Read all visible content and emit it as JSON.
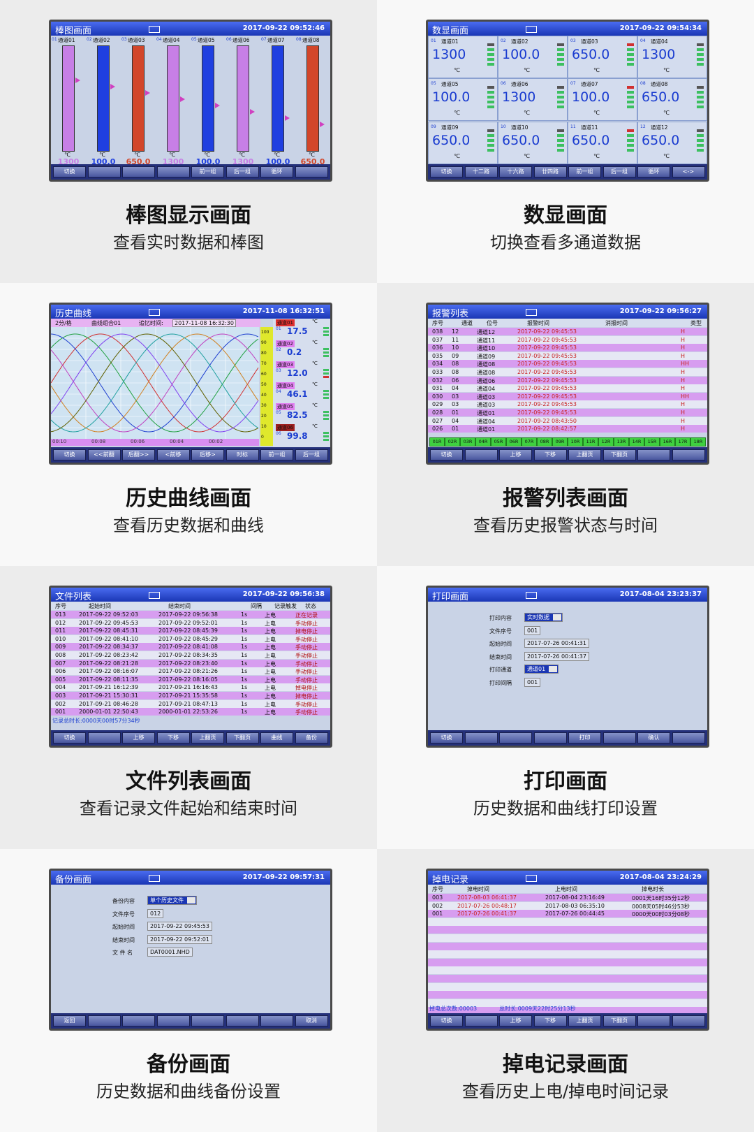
{
  "panels": [
    {
      "screen": {
        "title": "棒图画面",
        "datetime": "2017-09-22 09:52:46",
        "unit": "℃",
        "bars": [
          {
            "id": "01",
            "name": "通道01",
            "value": "1300",
            "color": "#c77fe6"
          },
          {
            "id": "02",
            "name": "通道02",
            "value": "100.0",
            "color": "#1f3fe0"
          },
          {
            "id": "03",
            "name": "通道03",
            "value": "650.0",
            "color": "#d2462a"
          },
          {
            "id": "04",
            "name": "通道04",
            "value": "1300",
            "color": "#c77fe6"
          },
          {
            "id": "05",
            "name": "通道05",
            "value": "100.0",
            "color": "#1f3fe0"
          },
          {
            "id": "06",
            "name": "通道06",
            "value": "1300",
            "color": "#c77fe6"
          },
          {
            "id": "07",
            "name": "通道07",
            "value": "100.0",
            "color": "#1f3fe0"
          },
          {
            "id": "08",
            "name": "通道08",
            "value": "650.0",
            "color": "#d2462a"
          }
        ],
        "buttons": [
          "切换",
          null,
          null,
          null,
          "前一组",
          "后一组",
          "循环",
          null
        ]
      },
      "caption": {
        "title": "棒图显示画面",
        "subtitle": "查看实时数据和棒图"
      }
    },
    {
      "screen": {
        "title": "数显画面",
        "datetime": "2017-09-22 09:54:34",
        "unit": "℃",
        "cells": [
          {
            "id": "01",
            "name": "通道01",
            "value": "1300"
          },
          {
            "id": "02",
            "name": "通道02",
            "value": "100.0"
          },
          {
            "id": "03",
            "name": "通道03",
            "value": "650.0"
          },
          {
            "id": "04",
            "name": "通道04",
            "value": "1300"
          },
          {
            "id": "05",
            "name": "通道05",
            "value": "100.0"
          },
          {
            "id": "06",
            "name": "通道06",
            "value": "1300"
          },
          {
            "id": "07",
            "name": "通道07",
            "value": "100.0"
          },
          {
            "id": "08",
            "name": "通道08",
            "value": "650.0"
          },
          {
            "id": "09",
            "name": "通道09",
            "value": "650.0"
          },
          {
            "id": "10",
            "name": "通道10",
            "value": "650.0"
          },
          {
            "id": "11",
            "name": "通道11",
            "value": "650.0"
          },
          {
            "id": "12",
            "name": "通道12",
            "value": "650.0"
          }
        ],
        "buttons": [
          "切换",
          "十二路",
          "十六路",
          "廿四路",
          "前一组",
          "后一组",
          "循环",
          "<->"
        ]
      },
      "caption": {
        "title": "数显画面",
        "subtitle": "切换查看多通道数据"
      }
    },
    {
      "screen": {
        "title": "历史曲线",
        "datetime": "2017-11-08 16:32:51",
        "unit": "℃",
        "curve": {
          "scale_per_div": "2分/格",
          "group": "曲线组合01",
          "recall_label": "追忆时间:",
          "recall_time": "2017-11-08 16:32:30",
          "y_scale": [
            100,
            90,
            80,
            70,
            60,
            50,
            40,
            30,
            20,
            10,
            0
          ],
          "x_labels": [
            "00:10",
            "00:08",
            "00:06",
            "00:04",
            "00:02"
          ],
          "channels": [
            {
              "id": "01",
              "name": "通道01",
              "value": "17.5"
            },
            {
              "id": "02",
              "name": "通道02",
              "value": "0.2"
            },
            {
              "id": "03",
              "name": "通道03",
              "value": "12.0"
            },
            {
              "id": "04",
              "name": "通道04",
              "value": "46.1"
            },
            {
              "id": "05",
              "name": "通道05",
              "value": "82.5"
            },
            {
              "id": "06",
              "name": "通道06",
              "value": "99.8"
            }
          ]
        },
        "buttons": [
          "切换",
          "<<前翻",
          "后翻>>",
          "<前移",
          "后移>",
          "时标",
          "前一组",
          "后一组"
        ]
      },
      "caption": {
        "title": "历史曲线画面",
        "subtitle": "查看历史数据和曲线"
      }
    },
    {
      "screen": {
        "title": "报警列表",
        "datetime": "2017-09-22 09:56:27",
        "table": {
          "columns": [
            "序号",
            "通道",
            "位号",
            "报警时间",
            "消报时间",
            "类型"
          ],
          "column_colors": [
            "#111111",
            "#111111",
            "#111111",
            "#c81e1e",
            "#111111",
            "#c81e1e"
          ],
          "rows": [
            [
              "038",
              "12",
              "通道12",
              "2017-09-22 09:45:53",
              null,
              "H"
            ],
            [
              "037",
              "11",
              "通道11",
              "2017-09-22 09:45:53",
              null,
              "H"
            ],
            [
              "036",
              "10",
              "通道10",
              "2017-09-22 09:45:53",
              null,
              "H"
            ],
            [
              "035",
              "09",
              "通道09",
              "2017-09-22 09:45:53",
              null,
              "H"
            ],
            [
              "034",
              "08",
              "通道08",
              "2017-09-22 09:45:53",
              null,
              "HH"
            ],
            [
              "033",
              "08",
              "通道08",
              "2017-09-22 09:45:53",
              null,
              "H"
            ],
            [
              "032",
              "06",
              "通道06",
              "2017-09-22 09:45:53",
              null,
              "H"
            ],
            [
              "031",
              "04",
              "通道04",
              "2017-09-22 09:45:53",
              null,
              "H"
            ],
            [
              "030",
              "03",
              "通道03",
              "2017-09-22 09:45:53",
              null,
              "HH"
            ],
            [
              "029",
              "03",
              "通道03",
              "2017-09-22 09:45:53",
              null,
              "H"
            ],
            [
              "028",
              "01",
              "通道01",
              "2017-09-22 09:45:53",
              null,
              "H"
            ],
            [
              "027",
              "04",
              "通道04",
              "2017-09-22 08:43:50",
              null,
              "H"
            ],
            [
              "026",
              "01",
              "通道01",
              "2017-09-22 08:42:57",
              null,
              "H"
            ]
          ]
        },
        "relays": [
          "01R",
          "02R",
          "03R",
          "04R",
          "05R",
          "06R",
          "07R",
          "08R",
          "09R",
          "10R",
          "11R",
          "12R",
          "13R",
          "14R",
          "15R",
          "16R",
          "17R",
          "18R"
        ],
        "buttons": [
          "切换",
          null,
          "上移",
          "下移",
          "上翻页",
          "下翻页",
          null,
          null
        ]
      },
      "caption": {
        "title": "报警列表画面",
        "subtitle": "查看历史报警状态与时间"
      }
    },
    {
      "screen": {
        "title": "文件列表",
        "datetime": "2017-09-22 09:56:38",
        "table": {
          "columns": [
            "序号",
            "起始时间",
            "结束时间",
            "间隔",
            "记录触发",
            "状态"
          ],
          "column_colors": [
            "#111111",
            "#111111",
            "#111111",
            "#111111",
            "#111111",
            "#b01010"
          ],
          "rows": [
            [
              "013",
              "2017-09-22 09:52:03",
              "2017-09-22 09:56:38",
              "1s",
              "上电",
              "正在记录"
            ],
            [
              "012",
              "2017-09-22 09:45:53",
              "2017-09-22 09:52:01",
              "1s",
              "上电",
              "手动停止"
            ],
            [
              "011",
              "2017-09-22 08:45:31",
              "2017-09-22 08:45:39",
              "1s",
              "上电",
              "掉电停止"
            ],
            [
              "010",
              "2017-09-22 08:41:10",
              "2017-09-22 08:45:29",
              "1s",
              "上电",
              "手动停止"
            ],
            [
              "009",
              "2017-09-22 08:34:37",
              "2017-09-22 08:41:08",
              "1s",
              "上电",
              "手动停止"
            ],
            [
              "008",
              "2017-09-22 08:23:42",
              "2017-09-22 08:34:35",
              "1s",
              "上电",
              "手动停止"
            ],
            [
              "007",
              "2017-09-22 08:21:28",
              "2017-09-22 08:23:40",
              "1s",
              "上电",
              "手动停止"
            ],
            [
              "006",
              "2017-09-22 08:16:07",
              "2017-09-22 08:21:26",
              "1s",
              "上电",
              "手动停止"
            ],
            [
              "005",
              "2017-09-22 08:11:35",
              "2017-09-22 08:16:05",
              "1s",
              "上电",
              "手动停止"
            ],
            [
              "004",
              "2017-09-21 16:12:39",
              "2017-09-21 16:16:43",
              "1s",
              "上电",
              "掉电停止"
            ],
            [
              "003",
              "2017-09-21 15:30:31",
              "2017-09-21 15:35:58",
              "1s",
              "上电",
              "掉电停止"
            ],
            [
              "002",
              "2017-09-21 08:46:28",
              "2017-09-21 08:47:13",
              "1s",
              "上电",
              "手动停止"
            ],
            [
              "001",
              "2000-01-01 22:50:43",
              "2000-01-01 22:53:26",
              "1s",
              "上电",
              "手动停止"
            ]
          ]
        },
        "footer": [
          "记录总时长:0000天00时57分34秒"
        ],
        "buttons": [
          "切换",
          null,
          "上移",
          "下移",
          "上翻页",
          "下翻页",
          "曲线",
          "备份"
        ]
      },
      "caption": {
        "title": "文件列表画面",
        "subtitle": "查看记录文件起始和结束时间"
      }
    },
    {
      "screen": {
        "title": "打印画面",
        "datetime": "2017-08-04 23:23:37",
        "form": [
          {
            "label": "打印内容",
            "value": "实时数据",
            "dropdown": true
          },
          {
            "label": "文件序号",
            "value": "001"
          },
          {
            "label": "起始时间",
            "value": "2017-07-26 00:41:31"
          },
          {
            "label": "结束时间",
            "value": "2017-07-26 00:41:37"
          },
          {
            "label": "打印通道",
            "value": "通道01",
            "dropdown": true
          },
          {
            "label": "打印间隔",
            "value": "001"
          }
        ],
        "buttons": [
          "切换",
          null,
          null,
          null,
          "打印",
          null,
          "确认",
          null
        ]
      },
      "caption": {
        "title": "打印画面",
        "subtitle": "历史数据和曲线打印设置"
      }
    },
    {
      "screen": {
        "title": "备份画面",
        "datetime": "2017-09-22 09:57:31",
        "form": [
          {
            "label": "备份内容",
            "value": "单个历史文件",
            "dropdown": true
          },
          {
            "label": "文件序号",
            "value": "012"
          },
          {
            "label": "起始时间",
            "value": "2017-09-22 09:45:53"
          },
          {
            "label": "结束时间",
            "value": "2017-09-22 09:52:01"
          },
          {
            "label": "文 件 名",
            "value": "DAT0001.NHD"
          }
        ],
        "buttons": [
          "返回",
          null,
          null,
          null,
          null,
          null,
          null,
          "取消"
        ]
      },
      "caption": {
        "title": "备份画面",
        "subtitle": "历史数据和曲线备份设置"
      }
    },
    {
      "screen": {
        "title": "掉电记录",
        "datetime": "2017-08-04 23:24:29",
        "table": {
          "columns": [
            "序号",
            "掉电时间",
            "上电时间",
            "掉电时长"
          ],
          "column_colors": [
            "#111111",
            "#c81e1e",
            "#111111",
            "#111111"
          ],
          "rows": [
            [
              "003",
              "2017-08-03 06:41:37",
              "2017-08-04 23:16:49",
              "0001天16时35分12秒"
            ],
            [
              "002",
              "2017-07-26 00:48:17",
              "2017-08-03 06:35:10",
              "0008天05时46分53秒"
            ],
            [
              "001",
              "2017-07-26 00:41:37",
              "2017-07-26 00:44:45",
              "0000天00时03分08秒"
            ]
          ]
        },
        "footer": [
          "掉电总次数:00003",
          "总时长:0009天22时25分13秒"
        ],
        "buttons": [
          "切换",
          null,
          "上移",
          "下移",
          "上翻页",
          "下翻页",
          null,
          null
        ]
      },
      "caption": {
        "title": "掉电记录画面",
        "subtitle": "查看历史上电/掉电时间记录"
      }
    }
  ]
}
